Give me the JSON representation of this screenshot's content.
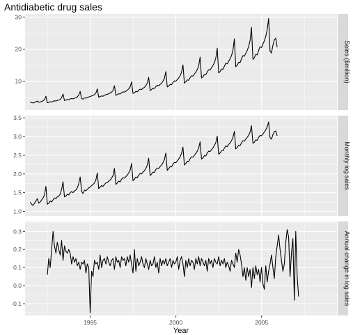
{
  "chart_data": {
    "type": "line",
    "title": "Antidiabetic drug sales",
    "xlabel": "Year",
    "x_ticks": [
      1995,
      2000,
      2005
    ],
    "xlim": [
      1991.2,
      2009.4
    ],
    "grid": true,
    "panels": [
      {
        "strip_label": "Sales ($million)",
        "ylim": [
          1.0,
          31.0
        ],
        "y_ticks": [
          10,
          20,
          30
        ],
        "series": [
          {
            "x_start": 1991.5,
            "step": 0.0833,
            "values": [
              3.5,
              3.3,
              3.2,
              3.4,
              3.6,
              3.8,
              3.4,
              3.5,
              3.7,
              3.9,
              4.2,
              5.3,
              3.3,
              3.4,
              3.6,
              3.5,
              3.7,
              3.9,
              3.8,
              4.0,
              4.1,
              4.3,
              4.9,
              6.0,
              4.0,
              4.1,
              4.3,
              4.2,
              4.5,
              4.6,
              4.5,
              4.7,
              4.8,
              5.1,
              5.7,
              6.8,
              4.6,
              4.4,
              4.8,
              4.7,
              4.9,
              5.1,
              5.2,
              5.4,
              5.6,
              5.8,
              6.3,
              7.6,
              5.0,
              5.2,
              5.4,
              5.3,
              5.6,
              5.8,
              5.9,
              6.1,
              6.3,
              6.6,
              7.1,
              8.6,
              5.6,
              5.8,
              6.1,
              6.0,
              6.4,
              6.7,
              6.6,
              6.9,
              7.2,
              7.6,
              8.2,
              9.8,
              6.2,
              6.4,
              6.8,
              6.7,
              7.2,
              7.5,
              7.4,
              7.8,
              8.1,
              8.6,
              9.4,
              11.2,
              7.1,
              7.4,
              7.8,
              7.7,
              8.3,
              8.7,
              8.6,
              9.0,
              9.4,
              10.0,
              10.9,
              13.0,
              8.2,
              8.5,
              9.0,
              8.9,
              9.6,
              10.1,
              10.0,
              10.5,
              11.0,
              11.7,
              12.8,
              15.1,
              9.4,
              9.8,
              10.4,
              10.3,
              11.1,
              11.7,
              11.6,
              12.2,
              12.8,
              13.6,
              14.8,
              17.5,
              11.0,
              11.4,
              12.1,
              12.0,
              12.9,
              13.6,
              13.5,
              14.2,
              14.9,
              15.8,
              17.2,
              20.3,
              12.6,
              13.0,
              13.8,
              13.7,
              14.7,
              15.6,
              15.4,
              16.2,
              17.0,
              18.0,
              19.6,
              23.2,
              14.5,
              15.0,
              15.9,
              15.8,
              17.0,
              18.0,
              17.8,
              18.7,
              19.6,
              20.8,
              22.7,
              26.8,
              16.8,
              17.3,
              18.4,
              18.2,
              19.6,
              20.8,
              20.5,
              21.6,
              22.6,
              24.0,
              26.1,
              29.6,
              19.4,
              18.8,
              21.2,
              22.9,
              23.4,
              20.6
            ]
          }
        ]
      },
      {
        "strip_label": "Monthly log sales",
        "ylim": [
          0.88,
          3.56
        ],
        "y_ticks": [
          1.0,
          1.5,
          2.0,
          2.5,
          3.0,
          3.5
        ],
        "series": [
          {
            "x_start": 1991.5,
            "step": 0.0833,
            "values": [
              1.25,
              1.19,
              1.16,
              1.22,
              1.28,
              1.34,
              1.22,
              1.25,
              1.31,
              1.36,
              1.44,
              1.67,
              1.19,
              1.22,
              1.28,
              1.25,
              1.31,
              1.36,
              1.34,
              1.39,
              1.41,
              1.46,
              1.59,
              1.79,
              1.39,
              1.41,
              1.46,
              1.44,
              1.5,
              1.53,
              1.5,
              1.55,
              1.57,
              1.63,
              1.74,
              1.92,
              1.53,
              1.48,
              1.57,
              1.55,
              1.59,
              1.63,
              1.65,
              1.69,
              1.72,
              1.76,
              1.84,
              2.03,
              1.61,
              1.65,
              1.69,
              1.67,
              1.72,
              1.76,
              1.77,
              1.81,
              1.84,
              1.89,
              1.96,
              2.15,
              1.72,
              1.76,
              1.81,
              1.79,
              1.86,
              1.9,
              1.89,
              1.93,
              1.97,
              2.03,
              2.1,
              2.28,
              1.82,
              1.86,
              1.92,
              1.9,
              1.97,
              2.01,
              2.0,
              2.05,
              2.09,
              2.15,
              2.24,
              2.42,
              1.96,
              2.0,
              2.05,
              2.04,
              2.12,
              2.16,
              2.15,
              2.2,
              2.24,
              2.3,
              2.39,
              2.56,
              2.1,
              2.14,
              2.2,
              2.19,
              2.26,
              2.31,
              2.3,
              2.35,
              2.4,
              2.46,
              2.55,
              2.72,
              2.24,
              2.28,
              2.34,
              2.33,
              2.41,
              2.46,
              2.45,
              2.5,
              2.55,
              2.61,
              2.69,
              2.86,
              2.4,
              2.43,
              2.49,
              2.48,
              2.56,
              2.61,
              2.6,
              2.65,
              2.7,
              2.76,
              2.84,
              3.01,
              2.53,
              2.56,
              2.62,
              2.62,
              2.69,
              2.75,
              2.73,
              2.79,
              2.83,
              2.89,
              2.98,
              3.14,
              2.67,
              2.71,
              2.77,
              2.76,
              2.83,
              2.89,
              2.88,
              2.93,
              2.98,
              3.03,
              3.12,
              3.29,
              2.82,
              2.85,
              2.91,
              2.9,
              2.98,
              3.03,
              3.02,
              3.07,
              3.12,
              3.18,
              3.26,
              3.39,
              2.97,
              2.93,
              3.05,
              3.13,
              3.15,
              3.02
            ]
          }
        ]
      },
      {
        "strip_label": "Annual change in log sales",
        "ylim": [
          -0.165,
          0.355
        ],
        "y_ticks": [
          -0.1,
          0.0,
          0.1,
          0.2,
          0.3
        ],
        "series": [
          {
            "x_start": 1992.5,
            "step": 0.0833,
            "values": [
              0.06,
              0.15,
              0.1,
              0.2,
              0.3,
              0.22,
              0.18,
              0.24,
              0.2,
              0.17,
              0.25,
              0.14,
              0.22,
              0.19,
              0.18,
              0.2,
              0.18,
              0.12,
              0.16,
              0.13,
              0.15,
              0.11,
              0.13,
              0.09,
              0.13,
              0.12,
              0.14,
              0.07,
              0.12,
              0.1,
              -0.15,
              0.08,
              0.05,
              0.14,
              0.12,
              0.13,
              0.09,
              0.17,
              0.1,
              0.14,
              0.15,
              0.12,
              0.16,
              0.13,
              0.11,
              0.14,
              0.15,
              0.09,
              0.16,
              0.13,
              0.14,
              0.1,
              0.16,
              0.14,
              0.15,
              0.11,
              0.16,
              0.13,
              0.17,
              0.12,
              0.07,
              0.2,
              0.08,
              0.15,
              0.11,
              0.13,
              0.16,
              0.12,
              0.1,
              0.15,
              0.12,
              0.09,
              0.14,
              0.11,
              0.12,
              0.16,
              0.1,
              0.13,
              0.07,
              0.15,
              0.11,
              0.14,
              0.12,
              0.15,
              0.11,
              0.13,
              0.15,
              0.1,
              0.14,
              0.12,
              0.13,
              0.16,
              0.09,
              0.14,
              0.16,
              0.12,
              0.05,
              0.14,
              0.1,
              0.15,
              0.11,
              0.14,
              0.13,
              0.09,
              0.15,
              0.12,
              0.16,
              0.11,
              0.15,
              0.13,
              0.11,
              0.14,
              0.08,
              0.15,
              0.12,
              0.14,
              0.1,
              0.15,
              0.13,
              0.12,
              0.16,
              0.11,
              0.14,
              0.12,
              0.15,
              0.1,
              0.13,
              0.11,
              0.08,
              0.14,
              0.12,
              0.1,
              0.18,
              0.13,
              0.2,
              0.17,
              0.12,
              0.05,
              0.1,
              0.03,
              0.1,
              0.05,
              0.09,
              -0.01,
              0.1,
              0.04,
              0.11,
              0.06,
              0.09,
              0.02,
              0.1,
              0.01,
              -0.02,
              0.11,
              0.02,
              0.08,
              0.12,
              0.17,
              0.1,
              0.04,
              0.16,
              0.22,
              0.28,
              0.2,
              0.14,
              0.08,
              0.12,
              0.24,
              0.31,
              0.27,
              0.05,
              0.18,
              0.26,
              -0.08,
              0.3,
              0.05,
              -0.06
            ]
          }
        ]
      }
    ]
  },
  "style": {
    "panel_bg": "#ebebeb",
    "strip_bg": "#d9d9d9",
    "grid_major": "#ffffff",
    "line_color": "#000000",
    "axis_text": "#4d4d4d"
  }
}
